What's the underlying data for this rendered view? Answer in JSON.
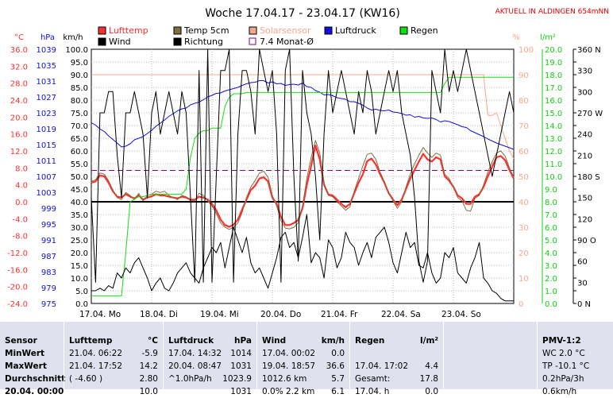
{
  "title": "Woche 17.04.17 - 23.04.17 (KW16)",
  "station_note": "AKTUELL IN ALDINGEN 654mNN",
  "legend": [
    {
      "label": "Lufttemp",
      "color": "#ff3030",
      "style": "box"
    },
    {
      "label": "Temp 5cm",
      "color": "#807040",
      "style": "box"
    },
    {
      "label": "Solarsensor",
      "color": "#f4a888",
      "style": "box"
    },
    {
      "label": "Luftdruck",
      "color": "#1010e0",
      "style": "box"
    },
    {
      "label": "Regen",
      "color": "#10e010",
      "style": "box"
    },
    {
      "label": "Wind",
      "color": "#000000",
      "style": "box"
    },
    {
      "label": "Richtung",
      "color": "#000000",
      "style": "box"
    },
    {
      "label": "7.4 Monat-Ø",
      "color": "#800080",
      "style": "outline"
    }
  ],
  "chart_data": {
    "type": "line",
    "x_labels": [
      "17.04. Mo",
      "18.04. Di",
      "19.04. Mi",
      "20.04. Do",
      "21.04. Fr",
      "22.04. Sa",
      "23.04. So"
    ],
    "axes": {
      "temp": {
        "unit": "°C",
        "color": "#ff3030",
        "range": [
          -24,
          36
        ],
        "ticks": [
          "36.0",
          "32.0",
          "28.0",
          "24.0",
          "20.0",
          "16.0",
          "12.0",
          "8.0",
          "4.0",
          "0.0",
          "-4.0",
          "-8.0",
          "-12.0",
          "-16.0",
          "-20.0",
          "-24.0"
        ]
      },
      "pressure": {
        "unit": "hPa",
        "color": "#1010e0",
        "range": [
          975,
          1039
        ],
        "ticks": [
          "1039",
          "1035",
          "1031",
          "1027",
          "1023",
          "1019",
          "1015",
          "1011",
          "1007",
          "1003",
          "999",
          "995",
          "991",
          "987",
          "983",
          "979",
          "975"
        ]
      },
      "wind": {
        "unit": "km/h",
        "color": "#000000",
        "range": [
          0,
          100
        ],
        "ticks": [
          "100.0",
          "95.0",
          "90.0",
          "85.0",
          "80.0",
          "75.0",
          "70.0",
          "65.0",
          "60.0",
          "55.0",
          "50.0",
          "45.0",
          "40.0",
          "35.0",
          "30.0",
          "25.0",
          "20.0",
          "15.0",
          "10.0",
          "5.0",
          "0.0"
        ]
      },
      "solar": {
        "unit": "%",
        "color": "#f4a888",
        "range": [
          0,
          100
        ],
        "ticks": [
          "100",
          "90",
          "80",
          "70",
          "60",
          "50",
          "40",
          "30",
          "20",
          "10",
          "0"
        ]
      },
      "rain": {
        "unit": "l/m²",
        "color": "#10d010",
        "range": [
          0,
          20
        ],
        "ticks": [
          "20.0",
          "19.0",
          "18.0",
          "17.0",
          "16.0",
          "15.0",
          "14.0",
          "13.0",
          "12.0",
          "11.0",
          "10.0",
          "9.0",
          "8.0",
          "7.0",
          "6.0",
          "5.0",
          "4.0",
          "3.0",
          "2.0",
          "1.0",
          "0.0"
        ]
      },
      "direction": {
        "unit": "",
        "color": "#000000",
        "range": [
          0,
          360
        ],
        "ticks": [
          "360 N",
          "330",
          "300",
          "270 W",
          "240",
          "210",
          "180 S",
          "150",
          "120",
          "90 O",
          "60",
          "30",
          "0 N"
        ]
      }
    },
    "monthly_avg_temp": 7.4,
    "series": [
      {
        "name": "Lufttemp",
        "axis": "temp",
        "color": "#ff3030",
        "values": [
          4.5,
          4.8,
          6.2,
          6.0,
          4.5,
          2.5,
          1.2,
          1.0,
          1.8,
          1.2,
          0.8,
          1.5,
          0.5,
          1.0,
          1.3,
          1.8,
          1.5,
          1.5,
          1.2,
          1.0,
          0.8,
          1.2,
          1.0,
          0.5,
          0.5,
          1.2,
          1.0,
          0.5,
          -0.5,
          -2.0,
          -4.2,
          -5.5,
          -5.9,
          -5.4,
          -4.2,
          -1.8,
          0.5,
          2.8,
          3.8,
          5.5,
          5.8,
          4.8,
          1.0,
          -0.5,
          -3.5,
          -5.5,
          -5.5,
          -5.0,
          -4.3,
          -1.5,
          4.0,
          8.5,
          13.3,
          10.0,
          4.0,
          1.7,
          1.5,
          0.5,
          -0.5,
          -1.3,
          -0.5,
          2.0,
          4.5,
          6.5,
          9.6,
          10.2,
          8.8,
          6.5,
          4.5,
          2.0,
          0.5,
          -0.8,
          0.5,
          3.0,
          5.5,
          7.5,
          9.5,
          11.3,
          10.0,
          9.5,
          10.5,
          10.0,
          6.0,
          5.0,
          3.5,
          1.5,
          0.8,
          -0.5,
          -0.5,
          1.2,
          1.8,
          3.5,
          6.0,
          8.3,
          10.5,
          10.8,
          9.8,
          7.5,
          5.5
        ]
      },
      {
        "name": "Temp 5cm",
        "axis": "temp",
        "color": "#807040",
        "values": [
          4.8,
          5.2,
          6.8,
          6.5,
          5.0,
          2.8,
          1.0,
          0.5,
          2.2,
          1.5,
          0.5,
          2.0,
          0.2,
          1.5,
          1.8,
          2.5,
          2.2,
          2.5,
          1.5,
          1.0,
          0.5,
          1.5,
          1.2,
          0.2,
          0.2,
          2.0,
          1.5,
          0.2,
          -1.0,
          -2.8,
          -5.0,
          -6.0,
          -6.5,
          -6.0,
          -5.0,
          -2.5,
          1.0,
          3.5,
          5.0,
          6.8,
          7.2,
          5.8,
          1.5,
          -1.0,
          -4.5,
          -6.2,
          -6.4,
          -6.0,
          -5.0,
          -1.0,
          5.5,
          10.5,
          14.5,
          11.5,
          4.5,
          1.5,
          1.2,
          0.0,
          -1.0,
          -2.0,
          -1.2,
          2.5,
          5.5,
          8.5,
          11.2,
          11.5,
          10.0,
          7.0,
          4.8,
          2.0,
          0.2,
          -1.5,
          0.0,
          3.5,
          6.5,
          9.0,
          11.0,
          12.8,
          11.5,
          10.5,
          11.5,
          11.0,
          6.5,
          5.5,
          3.5,
          1.0,
          0.2,
          -2.0,
          -2.2,
          0.8,
          1.5,
          4.0,
          7.0,
          9.5,
          11.5,
          12.0,
          10.8,
          8.0,
          5.8
        ]
      },
      {
        "name": "Solarsensor",
        "axis": "solar",
        "color": "#f4a888",
        "values": [
          90,
          90,
          90,
          90,
          90,
          90,
          90,
          90,
          90,
          90,
          90,
          90,
          90,
          90,
          90,
          90,
          90,
          90,
          90,
          90,
          90,
          90,
          90,
          90,
          90,
          90,
          90,
          90,
          90,
          90,
          90,
          90,
          90,
          90,
          90,
          90,
          90,
          90,
          90,
          90,
          90,
          90,
          90,
          90,
          90,
          90,
          90,
          90,
          90,
          90,
          90,
          90,
          90,
          90,
          90,
          90,
          90,
          90,
          90,
          90,
          90,
          90,
          90,
          90,
          90,
          90,
          90,
          90,
          90,
          90,
          90,
          90,
          90,
          90,
          90,
          90,
          90,
          90,
          90,
          90,
          90,
          90,
          90,
          90,
          90,
          90,
          90,
          90,
          90,
          90,
          90,
          90,
          74,
          74,
          75,
          70,
          65,
          60,
          57
        ]
      },
      {
        "name": "Luftdruck",
        "axis": "pressure",
        "color": "#1010e0",
        "values": [
          1020.5,
          1019.9,
          1018.9,
          1018.3,
          1017.2,
          1016.3,
          1015.4,
          1014.4,
          1014.6,
          1015.2,
          1016.2,
          1016.6,
          1017.0,
          1017.8,
          1018.6,
          1019.6,
          1020.4,
          1021.2,
          1022.1,
          1022.8,
          1023.5,
          1024.0,
          1024.2,
          1025.0,
          1025.4,
          1025.7,
          1026.3,
          1027.0,
          1027.4,
          1027.9,
          1028.0,
          1028.5,
          1028.8,
          1029.1,
          1029.4,
          1029.9,
          1030.3,
          1030.6,
          1030.7,
          1031.1,
          1031.1,
          1030.5,
          1030.8,
          1030.3,
          1030.4,
          1029.9,
          1030.1,
          1030.2,
          1030.0,
          1030.5,
          1029.6,
          1029.4,
          1028.6,
          1028.2,
          1027.5,
          1027.6,
          1027.3,
          1026.8,
          1026.6,
          1026.4,
          1025.8,
          1025.8,
          1025.4,
          1024.9,
          1024.2,
          1023.7,
          1023.9,
          1023.6,
          1023.5,
          1023.7,
          1023.2,
          1023.1,
          1022.8,
          1022.4,
          1022.5,
          1021.9,
          1022.1,
          1021.7,
          1021.6,
          1021.7,
          1021.3,
          1020.7,
          1021.0,
          1020.8,
          1020.4,
          1020.0,
          1019.5,
          1019.3,
          1018.5,
          1018.0,
          1017.5,
          1017.0,
          1016.4,
          1015.9,
          1015.4,
          1015.0,
          1014.6,
          1014.2,
          1013.8
        ]
      },
      {
        "name": "Regen",
        "axis": "rain",
        "color": "#10e010",
        "values": [
          0.6,
          0.6,
          0.6,
          0.6,
          0.6,
          0.6,
          0.6,
          0.6,
          4.0,
          8.0,
          8.2,
          8.4,
          8.4,
          8.5,
          8.6,
          8.6,
          8.6,
          8.6,
          8.6,
          8.6,
          8.6,
          8.6,
          9.0,
          11.5,
          13.0,
          13.4,
          13.6,
          13.6,
          13.8,
          13.8,
          13.8,
          15.5,
          16.2,
          16.5,
          16.5,
          16.5,
          16.6,
          16.6,
          16.6,
          16.6,
          16.6,
          16.6,
          16.6,
          16.6,
          16.6,
          16.6,
          16.6,
          16.6,
          16.6,
          16.6,
          16.6,
          16.6,
          16.6,
          16.6,
          16.6,
          16.6,
          16.6,
          16.6,
          16.6,
          16.6,
          16.6,
          16.6,
          16.6,
          16.6,
          16.6,
          16.6,
          16.6,
          16.6,
          16.6,
          16.6,
          16.6,
          16.6,
          16.6,
          16.6,
          16.6,
          16.6,
          16.6,
          16.6,
          16.6,
          16.6,
          16.6,
          16.6,
          17.3,
          17.8,
          17.8,
          17.8,
          17.8,
          17.8,
          17.8,
          17.8,
          17.8,
          17.8,
          17.8,
          17.8,
          17.8,
          17.8,
          17.8,
          17.8,
          17.8
        ]
      },
      {
        "name": "Wind",
        "axis": "wind",
        "color": "#000000",
        "values": [
          5,
          5,
          6,
          5,
          7,
          6,
          12,
          10,
          14,
          12,
          16,
          18,
          14,
          10,
          5,
          8,
          10,
          6,
          5,
          8,
          12,
          14,
          16,
          12,
          10,
          8,
          14,
          18,
          22,
          20,
          24,
          14,
          22,
          30,
          25,
          20,
          26,
          16,
          12,
          14,
          10,
          6,
          12,
          18,
          26,
          28,
          22,
          24,
          18,
          26,
          35,
          16,
          20,
          18,
          10,
          25,
          22,
          14,
          18,
          28,
          24,
          22,
          15,
          20,
          24,
          18,
          26,
          28,
          30,
          24,
          16,
          12,
          20,
          28,
          22,
          24,
          15,
          14,
          20,
          12,
          8,
          10,
          20,
          18,
          22,
          12,
          10,
          8,
          14,
          18,
          24,
          10,
          8,
          5,
          4,
          2,
          1,
          1,
          1
        ]
      },
      {
        "name": "Richtung",
        "axis": "direction",
        "color": "#000000",
        "values": [
          150,
          30,
          270,
          270,
          300,
          300,
          210,
          150,
          270,
          270,
          300,
          270,
          240,
          150,
          270,
          300,
          240,
          270,
          300,
          270,
          240,
          300,
          270,
          150,
          30,
          330,
          30,
          360,
          30,
          180,
          330,
          330,
          360,
          30,
          240,
          330,
          330,
          300,
          240,
          360,
          330,
          300,
          330,
          240,
          30,
          330,
          360,
          180,
          60,
          330,
          270,
          240,
          180,
          90,
          240,
          330,
          270,
          300,
          330,
          300,
          270,
          240,
          300,
          270,
          330,
          300,
          240,
          270,
          300,
          330,
          300,
          330,
          270,
          240,
          210,
          150,
          60,
          30,
          60,
          330,
          300,
          270,
          360,
          300,
          330,
          300,
          330,
          360,
          330,
          300,
          270,
          240,
          210,
          180,
          210,
          240,
          270,
          300,
          270
        ]
      }
    ]
  },
  "stats": {
    "sensor": {
      "header": "Sensor",
      "rows": [
        "MinWert",
        "MaxWert",
        "Durchschnitt",
        "20.04. 00:00"
      ]
    },
    "lufttemp": {
      "header": "Lufttemp",
      "unit": "°C",
      "rows": [
        [
          "21.04.  06:22",
          "-5.9"
        ],
        [
          "21.04.  17:52",
          "14.2"
        ],
        [
          "( -4.60 )",
          "2.80"
        ],
        [
          "",
          "10.0"
        ]
      ]
    },
    "luftdruck": {
      "header": "Luftdruck",
      "unit": "hPa",
      "rows": [
        [
          "17.04.  14:32",
          "1014"
        ],
        [
          "20.04.  08:47",
          "1031"
        ],
        [
          "^1.0hPa/h",
          "1023.9"
        ],
        [
          "",
          "1031"
        ]
      ]
    },
    "wind": {
      "header": "Wind",
      "unit": "km/h",
      "rows": [
        [
          "17.04.  00:02",
          "0.0"
        ],
        [
          "19.04.  18:57",
          "36.6"
        ],
        [
          "1012.6 km",
          "5.7"
        ],
        [
          "0.0% 2.2 km",
          "6.1"
        ]
      ]
    },
    "regen": {
      "header": "Regen",
      "unit": "l/m²",
      "rows": [
        [
          "",
          ""
        ],
        [
          "17.04.  17:02",
          "4.4"
        ],
        [
          "Gesamt:",
          "17.8"
        ],
        [
          "17.04. h",
          "0.0"
        ]
      ]
    },
    "pmv": {
      "header": "PMV-1:2",
      "rows": [
        "WC 2.0 °C",
        "TP -10.1 °C",
        "0.2hPa/3h",
        "0.6km/h"
      ]
    }
  }
}
